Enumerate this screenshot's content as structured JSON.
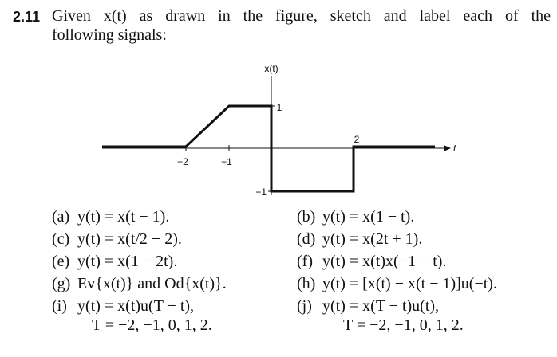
{
  "problem": {
    "number": "2.11",
    "statement": [
      "Given x(t) as drawn in the figure, sketch and label each of the",
      "following signals:"
    ]
  },
  "figure": {
    "y_label": "x(t)",
    "x_label": "t",
    "tick_labels": [
      "−2",
      "−1",
      "1",
      "2",
      "−1"
    ]
  },
  "items": [
    {
      "label": "(a)",
      "text": "y(t) = x(t − 1)."
    },
    {
      "label": "(b)",
      "text": "y(t) = x(1 − t)."
    },
    {
      "label": "(c)",
      "text": "y(t) = x(t/2 − 2)."
    },
    {
      "label": "(d)",
      "text": "y(t) = x(2t + 1)."
    },
    {
      "label": "(e)",
      "text": "y(t) = x(1 − 2t)."
    },
    {
      "label": "(f)",
      "text": "y(t) = x(t)x(−1 − t)."
    },
    {
      "label": "(g)",
      "text": "Ev{x(t)} and Od{x(t)}."
    },
    {
      "label": "(h)",
      "text": "y(t) = [x(t) − x(t − 1)]u(−t)."
    },
    {
      "label": "(i)",
      "text": "y(t) = x(t)u(T − t),",
      "continuation": "T = −2, −1, 0, 1, 2."
    },
    {
      "label": "(j)",
      "text": "y(t) = x(T − t)u(t),",
      "continuation": "T = −2, −1, 0, 1, 2."
    }
  ]
}
